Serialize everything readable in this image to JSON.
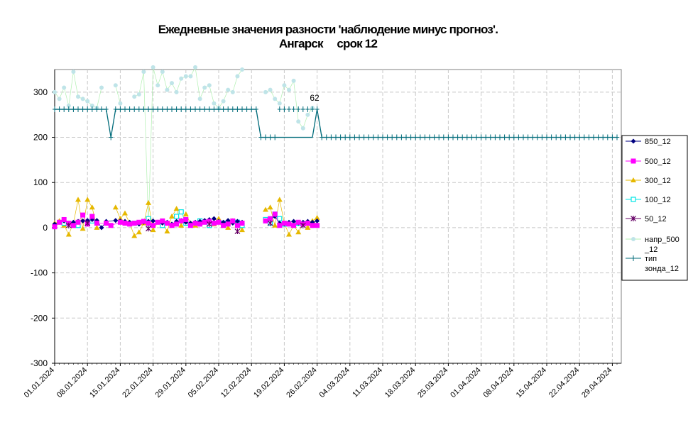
{
  "chart_data": {
    "type": "line",
    "title_line1": "Ежедневные значения разности 'наблюдение минус прогноз'.",
    "title_line2": "Ангарск     срок 12",
    "ylim": [
      -300,
      350
    ],
    "yticks": [
      300,
      200,
      100,
      0,
      -100,
      -200,
      -300
    ],
    "ytick_labels": [
      "300",
      "200",
      "100",
      "0",
      "-100",
      "-200",
      "-300"
    ],
    "x_start": "01.01.2024",
    "x_end": "30.04.2024",
    "xtick_labels": [
      "01.01.2024",
      "08.01.2024",
      "15.01.2024",
      "22.01.2024",
      "29.01.2024",
      "05.02.2024",
      "12.02.2024",
      "19.02.2024",
      "26.02.2024",
      "04.03.2024",
      "11.03.2024",
      "18.03.2024",
      "25.03.2024",
      "01.04.2024",
      "08.04.2024",
      "15.04.2024",
      "22.04.2024",
      "29.04.2024"
    ],
    "grid": true,
    "legend_position": "right",
    "annotation": {
      "text": "62",
      "date": "25.02.2024"
    },
    "series": [
      {
        "name": "850_12",
        "color": "#000080",
        "marker": "diamond",
        "x": [
          "01.01.2024",
          "02.01.2024",
          "03.01.2024",
          "04.01.2024",
          "05.01.2024",
          "06.01.2024",
          "07.01.2024",
          "08.01.2024",
          "09.01.2024",
          "10.01.2024",
          "11.01.2024",
          "12.01.2024",
          "14.01.2024",
          "15.01.2024",
          "16.01.2024",
          "17.01.2024",
          "18.01.2024",
          "19.01.2024",
          "20.01.2024",
          "21.01.2024",
          "22.01.2024",
          "23.01.2024",
          "24.01.2024",
          "25.01.2024",
          "26.01.2024",
          "27.01.2024",
          "28.01.2024",
          "29.01.2024",
          "30.01.2024",
          "31.01.2024",
          "01.02.2024",
          "02.02.2024",
          "03.02.2024",
          "04.02.2024",
          "05.02.2024",
          "06.02.2024",
          "07.02.2024",
          "08.02.2024",
          "09.02.2024",
          "10.02.2024",
          "15.02.2024",
          "16.02.2024",
          "17.02.2024",
          "18.02.2024",
          "19.02.2024",
          "20.02.2024",
          "21.02.2024",
          "22.02.2024",
          "23.02.2024",
          "24.02.2024",
          "25.02.2024",
          "26.02.2024"
        ],
        "y": [
          8,
          12,
          15,
          10,
          12,
          14,
          15,
          16,
          18,
          16,
          0,
          14,
          16,
          15,
          14,
          12,
          10,
          8,
          12,
          14,
          15,
          12,
          10,
          12,
          8,
          14,
          16,
          12,
          10,
          12,
          14,
          16,
          18,
          20,
          14,
          12,
          16,
          10,
          14,
          12,
          15,
          20,
          25,
          10,
          8,
          12,
          14,
          10,
          12,
          14,
          12,
          15
        ]
      },
      {
        "name": "500_12",
        "color": "#ff00ff",
        "marker": "square",
        "x": [
          "01.01.2024",
          "02.01.2024",
          "03.01.2024",
          "04.01.2024",
          "05.01.2024",
          "06.01.2024",
          "07.01.2024",
          "08.01.2024",
          "09.01.2024",
          "10.01.2024",
          "12.01.2024",
          "13.01.2024",
          "15.01.2024",
          "16.01.2024",
          "17.01.2024",
          "18.01.2024",
          "19.01.2024",
          "20.01.2024",
          "21.01.2024",
          "22.01.2024",
          "23.01.2024",
          "24.01.2024",
          "25.01.2024",
          "26.01.2024",
          "27.01.2024",
          "28.01.2024",
          "29.01.2024",
          "30.01.2024",
          "31.01.2024",
          "01.02.2024",
          "02.02.2024",
          "03.02.2024",
          "04.02.2024",
          "05.02.2024",
          "06.02.2024",
          "07.02.2024",
          "08.02.2024",
          "09.02.2024",
          "10.02.2024",
          "15.02.2024",
          "16.02.2024",
          "17.02.2024",
          "18.02.2024",
          "19.02.2024",
          "20.02.2024",
          "21.02.2024",
          "22.02.2024",
          "23.02.2024",
          "24.02.2024",
          "25.02.2024",
          "26.02.2024"
        ],
        "y": [
          2,
          12,
          18,
          10,
          5,
          12,
          28,
          8,
          25,
          10,
          10,
          5,
          12,
          10,
          8,
          10,
          12,
          14,
          10,
          5,
          12,
          15,
          10,
          5,
          8,
          15,
          18,
          5,
          10,
          8,
          12,
          14,
          10,
          12,
          5,
          8,
          15,
          5,
          10,
          15,
          20,
          30,
          5,
          10,
          8,
          5,
          12,
          8,
          10,
          5,
          5
        ]
      },
      {
        "name": "300_12",
        "color": "#e6b800",
        "marker": "triangle",
        "x": [
          "01.01.2024",
          "02.01.2024",
          "03.01.2024",
          "04.01.2024",
          "05.01.2024",
          "06.01.2024",
          "07.01.2024",
          "08.01.2024",
          "09.01.2024",
          "10.01.2024",
          "14.01.2024",
          "15.01.2024",
          "16.01.2024",
          "17.01.2024",
          "18.01.2024",
          "19.01.2024",
          "20.01.2024",
          "21.01.2024",
          "22.01.2024",
          "23.01.2024",
          "24.01.2024",
          "25.01.2024",
          "26.01.2024",
          "27.01.2024",
          "28.01.2024",
          "29.01.2024",
          "30.01.2024",
          "31.01.2024",
          "01.02.2024",
          "02.02.2024",
          "03.02.2024",
          "04.02.2024",
          "05.02.2024",
          "06.02.2024",
          "07.02.2024",
          "08.02.2024",
          "09.02.2024",
          "10.02.2024",
          "15.02.2024",
          "16.02.2024",
          "17.02.2024",
          "18.02.2024",
          "19.02.2024",
          "20.02.2024",
          "21.02.2024",
          "22.02.2024",
          "23.02.2024",
          "24.02.2024",
          "25.02.2024",
          "26.02.2024"
        ],
        "y": [
          10,
          15,
          5,
          -15,
          10,
          62,
          -2,
          62,
          45,
          0,
          45,
          20,
          32,
          10,
          -18,
          -10,
          10,
          55,
          -5,
          12,
          10,
          -8,
          25,
          42,
          5,
          30,
          10,
          5,
          15,
          12,
          5,
          8,
          20,
          10,
          0,
          15,
          5,
          -5,
          40,
          45,
          5,
          62,
          10,
          -15,
          5,
          -10,
          10,
          0,
          15,
          22
        ]
      },
      {
        "name": "100_12",
        "color": "#00e5e5",
        "marker": "square-open",
        "x": [
          "03.01.2024",
          "06.01.2024",
          "09.01.2024",
          "18.01.2024",
          "21.01.2024",
          "24.01.2024",
          "27.01.2024",
          "28.01.2024",
          "29.01.2024",
          "01.02.2024",
          "03.02.2024",
          "06.02.2024",
          "09.02.2024",
          "10.02.2024",
          "15.02.2024",
          "16.02.2024",
          "17.02.2024",
          "18.02.2024",
          "19.02.2024",
          "22.02.2024"
        ],
        "y": [
          10,
          5,
          15,
          10,
          20,
          5,
          25,
          35,
          10,
          15,
          5,
          10,
          12,
          5,
          18,
          10,
          30,
          20,
          8,
          10
        ]
      },
      {
        "name": "50_12",
        "color": "#660066",
        "marker": "star",
        "x": [
          "04.01.2024",
          "08.01.2024",
          "21.01.2024",
          "03.02.2024",
          "09.02.2024",
          "16.02.2024",
          "23.02.2024"
        ],
        "y": [
          5,
          10,
          -2,
          8,
          -8,
          10,
          5
        ]
      },
      {
        "name": "напр_500_12",
        "color": "#bfe4e8",
        "line_color": "#b0f0b0",
        "marker": "dot",
        "x": [
          "01.01.2024",
          "02.01.2024",
          "03.01.2024",
          "04.01.2024",
          "05.01.2024",
          "06.01.2024",
          "07.01.2024",
          "08.01.2024",
          "09.01.2024",
          "10.01.2024",
          "11.01.2024",
          "14.01.2024",
          "15.01.2024",
          "18.01.2024",
          "19.01.2024",
          "20.01.2024",
          "21.01.2024",
          "22.01.2024",
          "23.01.2024",
          "24.01.2024",
          "25.01.2024",
          "26.01.2024",
          "27.01.2024",
          "28.01.2024",
          "29.01.2024",
          "30.01.2024",
          "31.01.2024",
          "01.02.2024",
          "02.02.2024",
          "03.02.2024",
          "04.02.2024",
          "05.02.2024",
          "06.02.2024",
          "07.02.2024",
          "08.02.2024",
          "09.02.2024",
          "10.02.2024",
          "15.02.2024",
          "16.02.2024",
          "17.02.2024",
          "18.02.2024",
          "19.02.2024",
          "20.02.2024",
          "21.02.2024",
          "22.02.2024",
          "23.02.2024",
          "24.02.2024",
          "25.02.2024"
        ],
        "y": [
          300,
          285,
          310,
          270,
          345,
          290,
          285,
          280,
          270,
          265,
          310,
          315,
          275,
          290,
          295,
          345,
          5,
          355,
          315,
          345,
          305,
          320,
          300,
          330,
          335,
          335,
          355,
          285,
          310,
          315,
          275,
          265,
          280,
          305,
          300,
          335,
          350,
          300,
          305,
          285,
          275,
          315,
          305,
          325,
          235,
          220,
          250,
          265
        ]
      },
      {
        "name": "тип зонда_12",
        "color": "#006b7a",
        "marker": "plus",
        "x": [
          "01.01.2024",
          "12.01.2024",
          "13.01.2024",
          "14.01.2024",
          "13.02.2024",
          "14.02.2024",
          "17.02.2024",
          "26.02.2024",
          "27.02.2024",
          "30.04.2024"
        ],
        "y": [
          262,
          262,
          200,
          262,
          262,
          200,
          200,
          262,
          200,
          200
        ]
      }
    ]
  }
}
